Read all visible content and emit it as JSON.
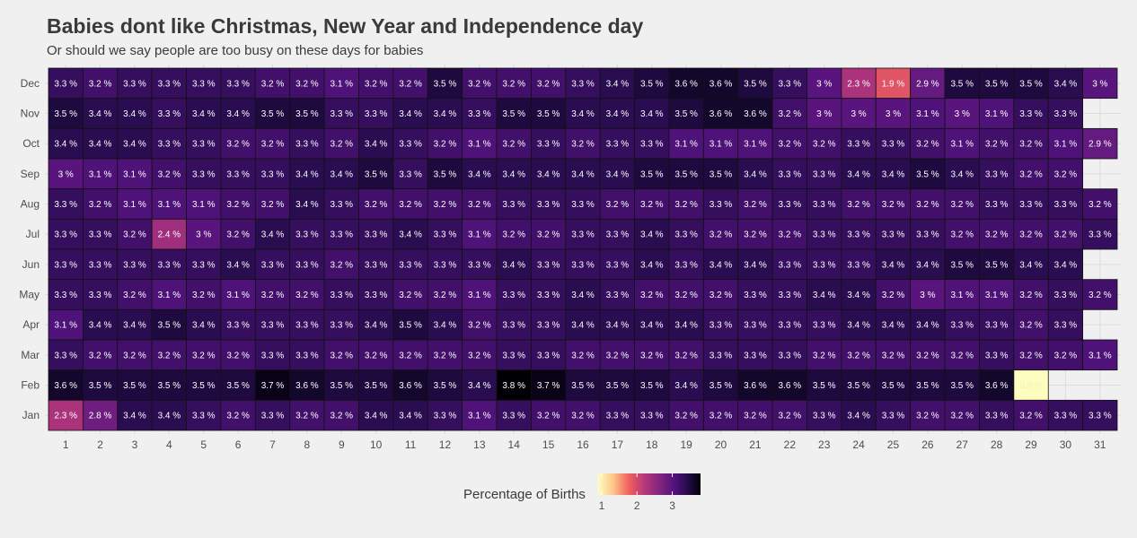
{
  "chart_data": {
    "type": "heatmap",
    "title": "Babies dont like Christmas, New Year and Independence day",
    "subtitle": "Or should we say people are too busy on these days for babies",
    "x": [
      "1",
      "2",
      "3",
      "4",
      "5",
      "6",
      "7",
      "8",
      "9",
      "10",
      "11",
      "12",
      "13",
      "14",
      "15",
      "16",
      "17",
      "18",
      "19",
      "20",
      "21",
      "22",
      "23",
      "24",
      "25",
      "26",
      "27",
      "28",
      "29",
      "30",
      "31"
    ],
    "y": [
      "Dec",
      "Nov",
      "Oct",
      "Sep",
      "Aug",
      "Jul",
      "Jun",
      "May",
      "Apr",
      "Mar",
      "Feb",
      "Jan"
    ],
    "values": [
      [
        3.3,
        3.2,
        3.3,
        3.3,
        3.3,
        3.3,
        3.2,
        3.2,
        3.1,
        3.2,
        3.2,
        3.5,
        3.2,
        3.2,
        3.2,
        3.3,
        3.4,
        3.5,
        3.6,
        3.6,
        3.5,
        3.3,
        3,
        2.3,
        1.9,
        2.9,
        3.5,
        3.5,
        3.5,
        3.4,
        3
      ],
      [
        3.5,
        3.4,
        3.4,
        3.3,
        3.4,
        3.4,
        3.5,
        3.5,
        3.3,
        3.3,
        3.4,
        3.4,
        3.3,
        3.5,
        3.5,
        3.4,
        3.4,
        3.4,
        3.5,
        3.6,
        3.6,
        3.2,
        3,
        3,
        3,
        3.1,
        3,
        3.1,
        3.3,
        3.3,
        null
      ],
      [
        3.4,
        3.4,
        3.4,
        3.3,
        3.3,
        3.2,
        3.2,
        3.3,
        3.2,
        3.4,
        3.3,
        3.2,
        3.1,
        3.2,
        3.3,
        3.2,
        3.3,
        3.3,
        3.1,
        3.1,
        3.1,
        3.2,
        3.2,
        3.3,
        3.3,
        3.2,
        3.1,
        3.2,
        3.2,
        3.1,
        2.9
      ],
      [
        3,
        3.1,
        3.1,
        3.2,
        3.3,
        3.3,
        3.3,
        3.4,
        3.4,
        3.5,
        3.3,
        3.5,
        3.4,
        3.4,
        3.4,
        3.4,
        3.4,
        3.5,
        3.5,
        3.5,
        3.4,
        3.3,
        3.3,
        3.4,
        3.4,
        3.5,
        3.4,
        3.3,
        3.2,
        3.2,
        null
      ],
      [
        3.3,
        3.2,
        3.1,
        3.1,
        3.1,
        3.2,
        3.2,
        3.4,
        3.3,
        3.2,
        3.2,
        3.2,
        3.2,
        3.3,
        3.3,
        3.3,
        3.2,
        3.2,
        3.2,
        3.3,
        3.2,
        3.3,
        3.3,
        3.2,
        3.2,
        3.2,
        3.2,
        3.3,
        3.3,
        3.3,
        3.2
      ],
      [
        3.3,
        3.3,
        3.2,
        2.4,
        3,
        3.2,
        3.4,
        3.3,
        3.3,
        3.3,
        3.4,
        3.3,
        3.1,
        3.2,
        3.2,
        3.3,
        3.3,
        3.4,
        3.3,
        3.2,
        3.2,
        3.2,
        3.3,
        3.3,
        3.3,
        3.3,
        3.2,
        3.2,
        3.2,
        3.2,
        3.3
      ],
      [
        3.3,
        3.3,
        3.3,
        3.3,
        3.3,
        3.4,
        3.3,
        3.3,
        3.2,
        3.3,
        3.3,
        3.3,
        3.3,
        3.4,
        3.3,
        3.3,
        3.3,
        3.4,
        3.3,
        3.4,
        3.4,
        3.3,
        3.3,
        3.3,
        3.4,
        3.4,
        3.5,
        3.5,
        3.4,
        3.4,
        null
      ],
      [
        3.3,
        3.3,
        3.2,
        3.1,
        3.2,
        3.1,
        3.2,
        3.2,
        3.3,
        3.3,
        3.2,
        3.2,
        3.1,
        3.3,
        3.3,
        3.4,
        3.3,
        3.2,
        3.2,
        3.2,
        3.3,
        3.3,
        3.4,
        3.4,
        3.2,
        3,
        3.1,
        3.1,
        3.2,
        3.3,
        3.2
      ],
      [
        3.1,
        3.4,
        3.4,
        3.5,
        3.4,
        3.3,
        3.3,
        3.3,
        3.3,
        3.4,
        3.5,
        3.4,
        3.2,
        3.3,
        3.3,
        3.4,
        3.4,
        3.4,
        3.4,
        3.3,
        3.3,
        3.3,
        3.3,
        3.4,
        3.4,
        3.4,
        3.3,
        3.3,
        3.2,
        3.3,
        null
      ],
      [
        3.3,
        3.2,
        3.2,
        3.2,
        3.2,
        3.2,
        3.3,
        3.3,
        3.2,
        3.2,
        3.2,
        3.2,
        3.2,
        3.3,
        3.3,
        3.2,
        3.2,
        3.2,
        3.2,
        3.3,
        3.3,
        3.3,
        3.2,
        3.2,
        3.2,
        3.2,
        3.2,
        3.3,
        3.2,
        3.2,
        3.1
      ],
      [
        3.6,
        3.5,
        3.5,
        3.5,
        3.5,
        3.5,
        3.7,
        3.6,
        3.5,
        3.5,
        3.6,
        3.5,
        3.4,
        3.8,
        3.7,
        3.5,
        3.5,
        3.5,
        3.4,
        3.5,
        3.6,
        3.6,
        3.5,
        3.5,
        3.5,
        3.5,
        3.5,
        3.6,
        0.9,
        null,
        null
      ],
      [
        2.3,
        2.8,
        3.4,
        3.4,
        3.3,
        3.2,
        3.3,
        3.2,
        3.2,
        3.4,
        3.4,
        3.3,
        3.1,
        3.3,
        3.2,
        3.2,
        3.3,
        3.3,
        3.2,
        3.2,
        3.2,
        3.2,
        3.3,
        3.4,
        3.3,
        3.2,
        3.2,
        3.3,
        3.2,
        3.3,
        3.3
      ]
    ],
    "value_suffix": " %",
    "colormap": "magma",
    "color_range": [
      0.9,
      3.8
    ],
    "legend": {
      "title": "Percentage of Births",
      "ticks": [
        1,
        2,
        3
      ],
      "placement": "bottom"
    }
  }
}
